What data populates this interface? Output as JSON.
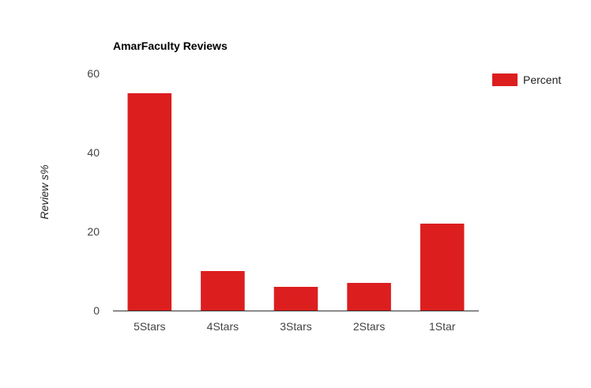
{
  "chart_data": {
    "type": "bar",
    "title": "AmarFaculty Reviews",
    "xlabel": "",
    "ylabel": "Review s%",
    "categories": [
      "5Stars",
      "4Stars",
      "3Stars",
      "2Stars",
      "1Star"
    ],
    "series": [
      {
        "name": "Percent",
        "values": [
          55,
          10,
          6,
          7,
          22
        ]
      }
    ],
    "ylim": [
      0,
      60
    ],
    "yticks": [
      0,
      20,
      40,
      60
    ],
    "grid": false,
    "legend_position": "right",
    "colors": {
      "bar": "#dc1e1f",
      "axis": "#333333",
      "tick_text": "#444444",
      "title": "#000000"
    }
  }
}
